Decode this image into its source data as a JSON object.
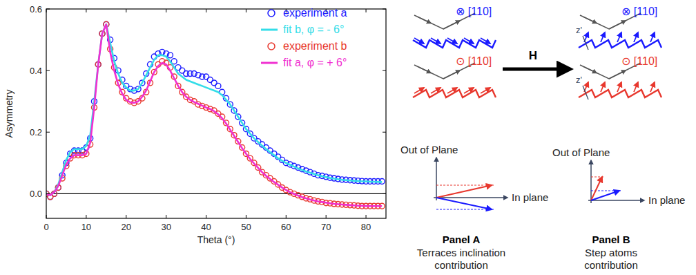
{
  "chart_data": {
    "type": "line",
    "x_label": "Theta (°)",
    "y_label": "Asymmetry",
    "xlim": [
      0,
      85
    ],
    "xticks": [
      0,
      10,
      20,
      30,
      40,
      50,
      60,
      70,
      80
    ],
    "ylim": [
      -0.08,
      0.6
    ],
    "yticks": [
      {
        "value": 0,
        "label": "0.0"
      },
      {
        "value": 0.2,
        "label": "0.2"
      },
      {
        "value": 0.4,
        "label": "0.4"
      },
      {
        "value": 0.6,
        "label": "0.6"
      }
    ],
    "legend": "upper right",
    "x": [
      0,
      1,
      2,
      3,
      4,
      5,
      6,
      7,
      8,
      9,
      10,
      11,
      12,
      13,
      14,
      15,
      16,
      17,
      18,
      19,
      20,
      21,
      22,
      23,
      24,
      25,
      26,
      27,
      28,
      29,
      30,
      31,
      32,
      33,
      34,
      35,
      36,
      37,
      38,
      39,
      40,
      41,
      42,
      43,
      44,
      45,
      46,
      47,
      48,
      49,
      50,
      51,
      52,
      53,
      54,
      55,
      56,
      57,
      58,
      59,
      60,
      61,
      62,
      63,
      64,
      65,
      66,
      67,
      68,
      69,
      70,
      71,
      72,
      73,
      74,
      75,
      76,
      77,
      78,
      79,
      80,
      81,
      82,
      83,
      84
    ],
    "series": [
      {
        "name": "experiment a",
        "type": "scatter",
        "marker": "circle",
        "color": "#1a1aff",
        "values": [
          0,
          -0.01,
          0,
          0.02,
          0.06,
          0.1,
          0.13,
          0.14,
          0.14,
          0.14,
          0.15,
          0.18,
          0.3,
          0.42,
          0.52,
          0.55,
          0.5,
          0.44,
          0.4,
          0.37,
          0.35,
          0.34,
          0.335,
          0.34,
          0.36,
          0.39,
          0.42,
          0.445,
          0.455,
          0.46,
          0.455,
          0.45,
          0.43,
          0.41,
          0.4,
          0.39,
          0.39,
          0.39,
          0.385,
          0.38,
          0.38,
          0.37,
          0.36,
          0.35,
          0.33,
          0.31,
          0.29,
          0.27,
          0.25,
          0.23,
          0.21,
          0.195,
          0.18,
          0.17,
          0.16,
          0.15,
          0.14,
          0.13,
          0.12,
          0.11,
          0.1,
          0.095,
          0.09,
          0.085,
          0.08,
          0.075,
          0.07,
          0.065,
          0.06,
          0.058,
          0.055,
          0.052,
          0.05,
          0.048,
          0.046,
          0.045,
          0.044,
          0.043,
          0.042,
          0.041,
          0.04,
          0.04,
          0.04,
          0.04,
          0.04
        ]
      },
      {
        "name": "fit b, φ = - 6°",
        "type": "line",
        "line_style": "solid",
        "color": "#33dde8",
        "values": [
          0,
          -0.005,
          0.005,
          0.03,
          0.07,
          0.11,
          0.135,
          0.145,
          0.145,
          0.145,
          0.155,
          0.19,
          0.3,
          0.42,
          0.52,
          0.55,
          0.49,
          0.43,
          0.39,
          0.36,
          0.345,
          0.335,
          0.335,
          0.34,
          0.36,
          0.385,
          0.41,
          0.435,
          0.45,
          0.45,
          0.445,
          0.43,
          0.41,
          0.39,
          0.38,
          0.37,
          0.365,
          0.36,
          0.355,
          0.35,
          0.345,
          0.34,
          0.335,
          0.33,
          0.32,
          0.305,
          0.29,
          0.27,
          0.25,
          0.23,
          0.21,
          0.195,
          0.18,
          0.168,
          0.156,
          0.145,
          0.135,
          0.125,
          0.115,
          0.107,
          0.1,
          0.094,
          0.088,
          0.082,
          0.077,
          0.072,
          0.068,
          0.064,
          0.06,
          0.057,
          0.054,
          0.051,
          0.049,
          0.047,
          0.045,
          0.044,
          0.043,
          0.042,
          0.041,
          0.04,
          0.04,
          0.039,
          0.039,
          0.038,
          0.038
        ]
      },
      {
        "name": "experiment b",
        "type": "scatter",
        "marker": "circle",
        "color": "#e8382e",
        "values": [
          0,
          -0.01,
          0,
          0.02,
          0.05,
          0.09,
          0.115,
          0.125,
          0.125,
          0.125,
          0.13,
          0.16,
          0.28,
          0.42,
          0.52,
          0.55,
          0.47,
          0.41,
          0.36,
          0.33,
          0.31,
          0.3,
          0.295,
          0.3,
          0.31,
          0.33,
          0.36,
          0.395,
          0.42,
          0.43,
          0.425,
          0.41,
          0.38,
          0.35,
          0.33,
          0.315,
          0.305,
          0.3,
          0.29,
          0.285,
          0.28,
          0.275,
          0.27,
          0.26,
          0.25,
          0.23,
          0.21,
          0.19,
          0.17,
          0.15,
          0.13,
          0.115,
          0.1,
          0.085,
          0.07,
          0.06,
          0.05,
          0.04,
          0.03,
          0.02,
          0.012,
          0.005,
          0,
          -0.005,
          -0.01,
          -0.015,
          -0.018,
          -0.022,
          -0.025,
          -0.027,
          -0.03,
          -0.031,
          -0.033,
          -0.034,
          -0.035,
          -0.036,
          -0.037,
          -0.038,
          -0.039,
          -0.04,
          -0.04,
          -0.04,
          -0.04,
          -0.04,
          -0.04
        ]
      },
      {
        "name": "fit a, φ = + 6°",
        "type": "line",
        "line_style": "solid",
        "color": "#f030d0",
        "values": [
          0,
          -0.005,
          0.005,
          0.025,
          0.06,
          0.095,
          0.115,
          0.125,
          0.125,
          0.125,
          0.13,
          0.165,
          0.28,
          0.42,
          0.52,
          0.55,
          0.46,
          0.4,
          0.355,
          0.325,
          0.305,
          0.297,
          0.295,
          0.3,
          0.315,
          0.335,
          0.365,
          0.395,
          0.415,
          0.425,
          0.42,
          0.4,
          0.375,
          0.35,
          0.33,
          0.315,
          0.305,
          0.298,
          0.292,
          0.286,
          0.28,
          0.275,
          0.268,
          0.258,
          0.245,
          0.228,
          0.208,
          0.188,
          0.168,
          0.148,
          0.13,
          0.113,
          0.098,
          0.084,
          0.07,
          0.058,
          0.048,
          0.038,
          0.029,
          0.02,
          0.012,
          0.005,
          -0.001,
          -0.006,
          -0.011,
          -0.015,
          -0.019,
          -0.022,
          -0.025,
          -0.027,
          -0.029,
          -0.031,
          -0.033,
          -0.034,
          -0.035,
          -0.036,
          -0.037,
          -0.038,
          -0.039,
          -0.039,
          -0.04,
          -0.04,
          -0.04,
          -0.04,
          -0.04
        ]
      }
    ]
  },
  "diagram": {
    "beam_top": "⊗ [110]",
    "beam_bottom": "⊙ [110]",
    "field": "H",
    "step_axis": "z'",
    "panels": [
      {
        "title": "Panel A",
        "caption": [
          "Terraces inclination",
          "contribution"
        ],
        "out_of_plane": "Out of Plane",
        "in_plane": "In plane"
      },
      {
        "title": "Panel B",
        "caption": [
          "Step atoms",
          "contribution"
        ],
        "out_of_plane": "Out of Plane",
        "in_plane": "In plane"
      }
    ]
  }
}
